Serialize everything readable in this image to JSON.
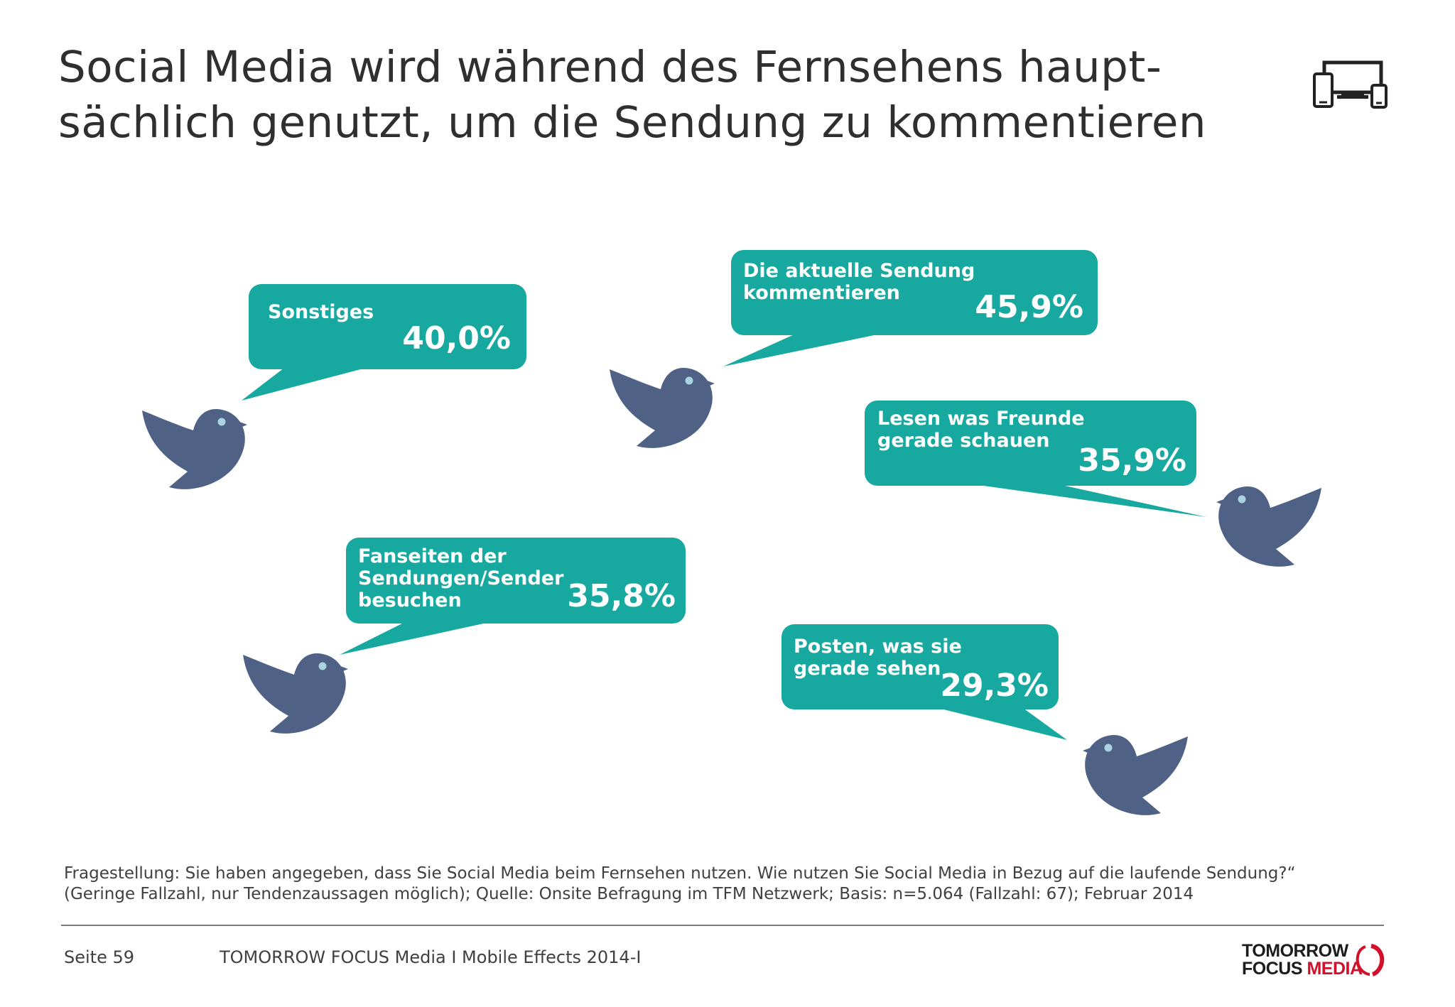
{
  "title": {
    "line1": "Social Media wird während des Fernsehens haupt-",
    "line2": "sächlich genutzt, um die Sendung zu kommentieren"
  },
  "chart_data": {
    "type": "bar",
    "style": "speech-bubbles",
    "unit": "%",
    "items": [
      {
        "label_lines": [
          "Sonstiges"
        ],
        "value": 40.0,
        "value_label": "40,0%"
      },
      {
        "label_lines": [
          "Die aktuelle Sendung",
          "kommentieren"
        ],
        "value": 45.9,
        "value_label": "45,9%"
      },
      {
        "label_lines": [
          "Lesen was Freunde",
          "gerade schauen"
        ],
        "value": 35.9,
        "value_label": "35,9%"
      },
      {
        "label_lines": [
          "Fanseiten der",
          "Sendungen/Sender",
          "besuchen"
        ],
        "value": 35.8,
        "value_label": "35,8%"
      },
      {
        "label_lines": [
          "Posten, was sie",
          "gerade sehen"
        ],
        "value": 29.3,
        "value_label": "29,3%"
      }
    ],
    "colors": {
      "bubble": "#17a89f",
      "bird": "#4f6285",
      "bird_eye": "#a9d3e0",
      "text": "#ffffff"
    }
  },
  "footnote": {
    "line1": "Fragestellung: Sie haben angegeben, dass Sie Social Media beim Fernsehen nutzen. Wie nutzen Sie Social Media in Bezug auf die laufende Sendung?“",
    "line2": "(Geringe Fallzahl, nur Tendenzaussagen möglich); Quelle: Onsite Befragung im TFM Netzwerk; Basis: n=5.064 (Fallzahl: 67); Februar 2014"
  },
  "footer": {
    "page": "Seite 59",
    "source": "TOMORROW FOCUS Media  I  Mobile Effects 2014-I"
  },
  "logo": {
    "line1": "TOMORROW",
    "line2_a": "FOCUS ",
    "line2_b": "MEDIA",
    "accent": "#d2102a"
  },
  "icons": {
    "header": "devices-icon",
    "bird": "bird-icon",
    "logo_mark": "ring-icon"
  }
}
